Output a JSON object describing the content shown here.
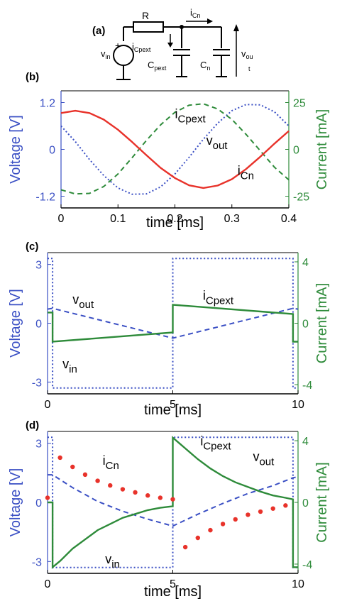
{
  "colors": {
    "voltage": "#3a4fc4",
    "current": "#2e8b3a",
    "red": "#e8322a",
    "axis": "#000000"
  },
  "circuit": {
    "panel_label": "(a)",
    "R": "R",
    "vin": "v",
    "vin_sub": "in",
    "plus": "+",
    "iCpext": "i",
    "iCpext_sub": "Cpext",
    "iCn": "i",
    "iCn_sub": "Cn",
    "Cpext": "C",
    "Cpext_sub": "pext",
    "Cn": "C",
    "Cn_sub": "n",
    "vout": "v",
    "vout_sub": "ou",
    "vout_sub2": "t"
  },
  "chart_data": [
    {
      "panel": "(b)",
      "type": "line",
      "xlabel": "time [ms]",
      "ylabel_left": "Voltage [V]",
      "ylabel_right": "Current [mA]",
      "xlim": [
        0,
        0.4
      ],
      "ylim_left": [
        -1.5,
        1.5
      ],
      "ylim_right": [
        -31.25,
        31.25
      ],
      "xticks": [
        "0",
        "0.1",
        "0.2",
        "0.3",
        "0.4"
      ],
      "xtick_values": [
        0,
        0.1,
        0.2,
        0.3,
        0.4
      ],
      "yticks_left": [
        "1.2",
        "0",
        "-1.2"
      ],
      "yticks_left_values": [
        1.2,
        0,
        -1.2
      ],
      "yticks_right": [
        "25",
        "0",
        "-25"
      ],
      "yticks_right_values": [
        25,
        0,
        -25
      ],
      "series": [
        {
          "key": "vout",
          "axis": "left",
          "style": "dotted",
          "color": "#3a4fc4",
          "x": [
            0,
            0.025,
            0.05,
            0.075,
            0.1,
            0.125,
            0.15,
            0.175,
            0.2,
            0.225,
            0.25,
            0.275,
            0.3,
            0.325,
            0.35,
            0.375,
            0.4
          ],
          "y": [
            0.6,
            0.2,
            -0.26,
            -0.67,
            -0.99,
            -1.15,
            -1.14,
            -0.96,
            -0.63,
            -0.2,
            0.26,
            0.67,
            0.99,
            1.15,
            1.14,
            0.96,
            0.6
          ]
        },
        {
          "key": "iCpext",
          "axis": "right",
          "style": "dashed",
          "color": "#2e8b3a",
          "x": [
            0,
            0.025,
            0.05,
            0.075,
            0.1,
            0.125,
            0.15,
            0.175,
            0.2,
            0.225,
            0.25,
            0.275,
            0.3,
            0.325,
            0.35,
            0.375,
            0.4
          ],
          "y": [
            -21.6,
            -23.8,
            -23.5,
            -19.8,
            -13.1,
            -4.4,
            4.8,
            13.1,
            19.8,
            23.6,
            24.3,
            21.6,
            16.0,
            8.0,
            -0.8,
            -9.6,
            -16.3
          ]
        },
        {
          "key": "iCn",
          "axis": "right",
          "style": "solid",
          "color": "#e8322a",
          "x": [
            0,
            0.025,
            0.05,
            0.075,
            0.1,
            0.125,
            0.15,
            0.175,
            0.2,
            0.225,
            0.25,
            0.275,
            0.3,
            0.325,
            0.35,
            0.375,
            0.4
          ],
          "y": [
            19.4,
            20.6,
            19.4,
            15.9,
            10.5,
            3.9,
            -3.1,
            -9.9,
            -15.3,
            -19.2,
            -20.6,
            -19.3,
            -15.9,
            -10.5,
            -3.9,
            3.1,
            9.8
          ]
        }
      ],
      "annotations": [
        {
          "text": "i",
          "sub": "Cpext",
          "x": 0.2,
          "yv": 0.8
        },
        {
          "text": "v",
          "sub": "out",
          "x": 0.255,
          "yv": 0.12
        },
        {
          "text": "i",
          "sub": "Cn",
          "x": 0.31,
          "yv": -0.65
        }
      ]
    },
    {
      "panel": "(c)",
      "type": "line",
      "xlabel": "time [ms]",
      "ylabel_left": "Voltage [V]",
      "ylabel_right": "Current [mA]",
      "xlim": [
        0,
        10
      ],
      "ylim_left": [
        -3.6,
        3.6
      ],
      "ylim_right": [
        -4.6,
        4.6
      ],
      "xticks": [
        "0",
        "5",
        "10"
      ],
      "xtick_values": [
        0,
        5,
        10
      ],
      "yticks_left": [
        "3",
        "0",
        "-3"
      ],
      "yticks_left_values": [
        3,
        0,
        -3
      ],
      "yticks_right": [
        "4",
        "0",
        "-4"
      ],
      "yticks_right_values": [
        4,
        0,
        -4
      ],
      "series": [
        {
          "key": "vin",
          "axis": "left",
          "style": "dotted",
          "color": "#3a4fc4",
          "x": [
            0,
            0.2,
            0.2,
            5,
            5,
            9.8,
            9.8,
            10
          ],
          "y": [
            3.3,
            3.3,
            -3.3,
            -3.3,
            3.3,
            3.3,
            -3.3,
            -3.3
          ]
        },
        {
          "key": "vout",
          "axis": "left",
          "style": "dashed",
          "color": "#3a4fc4",
          "x": [
            0,
            0.2,
            5,
            9.8,
            10
          ],
          "y": [
            0.72,
            0.76,
            -0.76,
            0.76,
            0.72
          ]
        },
        {
          "key": "iCpext",
          "axis": "right",
          "style": "solid",
          "color": "#2e8b3a",
          "x": [
            0,
            0.2,
            0.2,
            5,
            5,
            9.8,
            9.8,
            10
          ],
          "y": [
            0.7,
            0.7,
            -1.2,
            -0.6,
            1.2,
            0.6,
            -1.2,
            -1.2
          ]
        }
      ],
      "annotations": [
        {
          "text": "v",
          "sub": "out",
          "x": 1.0,
          "yv": 1.0
        },
        {
          "text": "i",
          "sub": "Cpext",
          "x": 6.2,
          "yv": 1.2
        },
        {
          "text": "v",
          "sub": "in",
          "x": 0.6,
          "yv": -2.3
        }
      ]
    },
    {
      "panel": "(d)",
      "type": "line",
      "xlabel": "time [ms]",
      "ylabel_left": "Voltage [V]",
      "ylabel_right": "Current [mA]",
      "xlim": [
        0,
        10
      ],
      "ylim_left": [
        -3.6,
        3.6
      ],
      "ylim_right": [
        -4.6,
        4.6
      ],
      "xticks": [
        "0",
        "5",
        "10"
      ],
      "xtick_values": [
        0,
        5,
        10
      ],
      "yticks_left": [
        "3",
        "0",
        "-3"
      ],
      "yticks_left_values": [
        3,
        0,
        -3
      ],
      "yticks_right": [
        "4",
        "0",
        "-4"
      ],
      "yticks_right_values": [
        4,
        0,
        -4
      ],
      "series": [
        {
          "key": "vin",
          "axis": "left",
          "style": "dotted",
          "color": "#3a4fc4",
          "x": [
            0,
            0.2,
            0.2,
            5,
            5,
            9.8,
            9.8,
            10
          ],
          "y": [
            3.3,
            3.3,
            -3.3,
            -3.3,
            3.3,
            3.3,
            -3.3,
            -3.3
          ]
        },
        {
          "key": "vout",
          "axis": "left",
          "style": "dashed",
          "color": "#3a4fc4",
          "x": [
            0,
            0.2,
            1,
            2,
            3,
            4,
            5,
            6,
            7,
            8,
            9,
            9.8,
            10
          ],
          "y": [
            1.4,
            1.4,
            0.75,
            0.05,
            -0.45,
            -0.85,
            -1.2,
            -0.6,
            -0.05,
            0.45,
            0.85,
            1.25,
            1.3
          ]
        },
        {
          "key": "iCpext",
          "axis": "right",
          "style": "solid",
          "color": "#2e8b3a",
          "x": [
            0,
            0.2,
            0.2,
            0.5,
            1,
            1.5,
            2,
            2.5,
            3,
            3.5,
            4,
            4.5,
            5,
            5,
            5.5,
            6,
            6.5,
            7,
            7.5,
            8,
            8.5,
            9,
            9.5,
            9.8,
            9.8,
            10
          ],
          "y": [
            0,
            0,
            -4.2,
            -3.8,
            -3.0,
            -2.4,
            -1.8,
            -1.4,
            -1.0,
            -0.75,
            -0.5,
            -0.35,
            -0.25,
            4.2,
            3.5,
            2.8,
            2.2,
            1.7,
            1.3,
            1.0,
            0.7,
            0.45,
            0.3,
            0.2,
            -4.2,
            -4.2
          ]
        },
        {
          "key": "iCn",
          "axis": "right",
          "style": "dots",
          "color": "#e8322a",
          "x": [
            0,
            0.5,
            1,
            1.5,
            2,
            2.5,
            3,
            3.5,
            4,
            4.5,
            5,
            5.5,
            6,
            6.5,
            7,
            7.5,
            8,
            8.5,
            9,
            9.5
          ],
          "y": [
            0.3,
            2.9,
            2.3,
            1.8,
            1.4,
            1.1,
            0.85,
            0.65,
            0.45,
            0.3,
            0.2,
            -2.9,
            -2.3,
            -1.8,
            -1.4,
            -1.1,
            -0.8,
            -0.6,
            -0.4,
            -0.2
          ]
        }
      ],
      "annotations": [
        {
          "text": "i",
          "sub": "Cn",
          "x": 2.2,
          "yv": 1.9
        },
        {
          "text": "i",
          "sub": "Cpext",
          "x": 6.1,
          "yv": 2.9
        },
        {
          "text": "v",
          "sub": "out",
          "x": 8.2,
          "yv": 2.1
        },
        {
          "text": "v",
          "sub": "in",
          "x": 2.3,
          "yv": -3.1
        }
      ]
    }
  ]
}
